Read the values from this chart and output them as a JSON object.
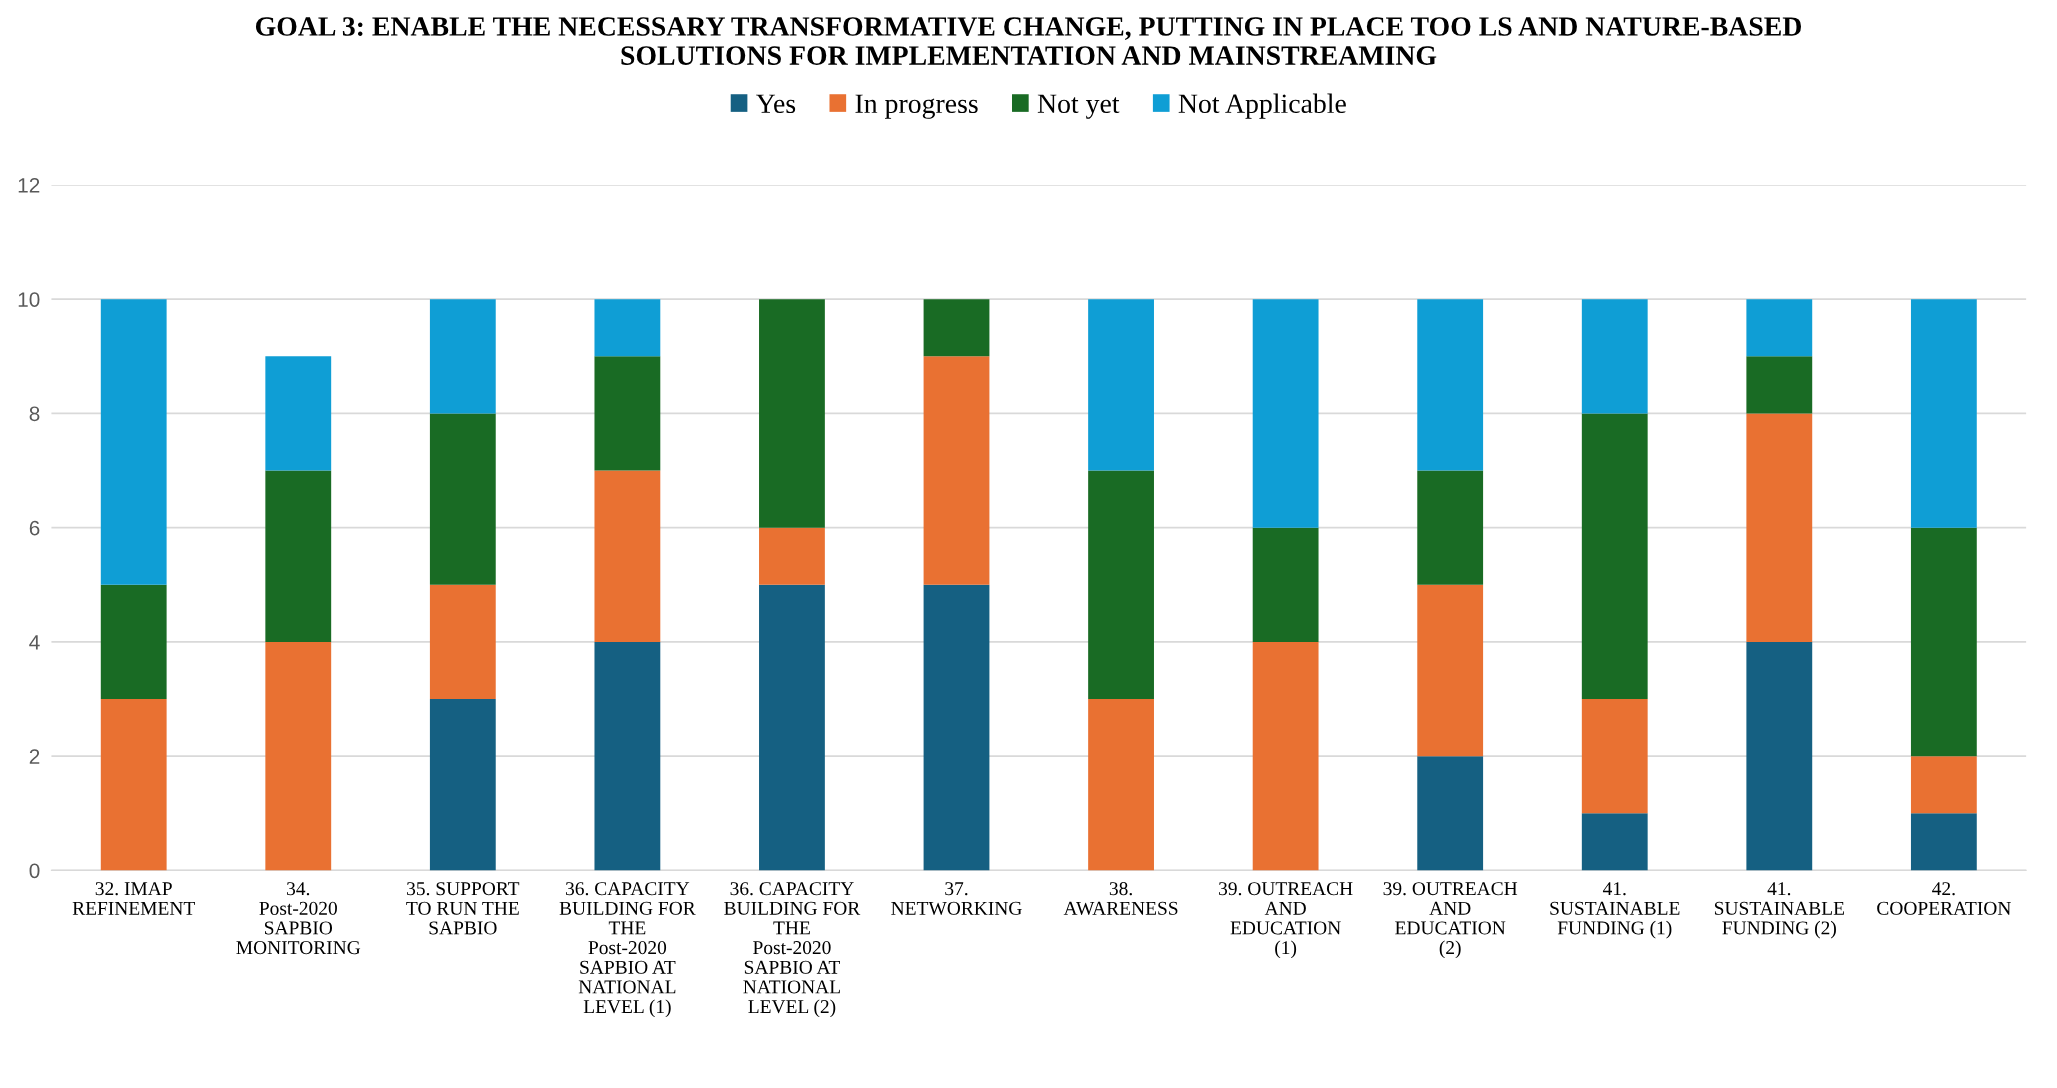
{
  "chart_data": {
    "type": "bar",
    "stacked": true,
    "title": "GOAL 3: ENABLE THE NECESSARY TRANSFORMATIVE CHANGE, PUTTING IN PLACE TOO LS AND NATURE-BASED SOLUTIONS FOR IMPLEMENTATION AND MAINSTREAMING",
    "categories": [
      "32. IMAP REFINEMENT",
      "34. Post-2020 SAPBIO MONITORING",
      "35. SUPPORT TO RUN THE SAPBIO",
      "36. CAPACITY BUILDING FOR THE Post-2020 SAPBIO AT NATIONAL LEVEL (1)",
      "36. CAPACITY BUILDING FOR THE Post-2020 SAPBIO AT NATIONAL LEVEL (2)",
      "37. NETWORKING",
      "38. AWARENESS",
      "39. OUTREACH AND EDUCATION (1)",
      "39. OUTREACH AND EDUCATION (2)",
      "41. SUSTAINABLE FUNDING (1)",
      "41. SUSTAINABLE FUNDING (2)",
      "42. COOPERATION"
    ],
    "series": [
      {
        "name": "Yes",
        "color": "#156082",
        "values": [
          0,
          0,
          3,
          4,
          5,
          5,
          0,
          0,
          2,
          1,
          4,
          1
        ]
      },
      {
        "name": "In progress",
        "color": "#e97132",
        "values": [
          3,
          4,
          2,
          3,
          1,
          4,
          3,
          4,
          3,
          2,
          4,
          1
        ]
      },
      {
        "name": "Not yet",
        "color": "#196b24",
        "values": [
          2,
          3,
          3,
          2,
          4,
          1,
          4,
          2,
          2,
          5,
          1,
          4
        ]
      },
      {
        "name": "Not Applicable",
        "color": "#0f9ed5",
        "values": [
          5,
          2,
          2,
          1,
          0,
          0,
          3,
          4,
          3,
          2,
          1,
          4
        ]
      }
    ],
    "ylim": [
      0,
      12
    ],
    "yticks": [
      0,
      2,
      4,
      6,
      8,
      10,
      12
    ],
    "grid": "y",
    "legend": "top"
  }
}
